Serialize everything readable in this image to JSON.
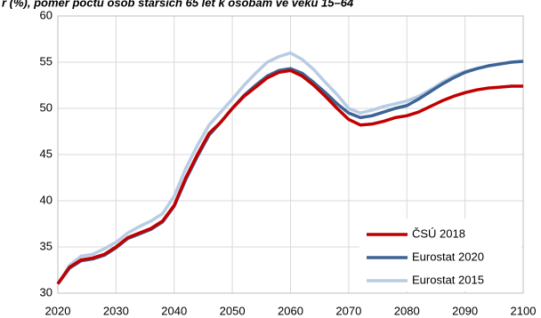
{
  "chart_data": {
    "type": "line",
    "title": "r (%), poměr počtu osob starších 65 let k osobám ve věku 15–64",
    "x": [
      2020,
      2022,
      2024,
      2026,
      2028,
      2030,
      2032,
      2034,
      2036,
      2038,
      2040,
      2042,
      2044,
      2046,
      2048,
      2050,
      2052,
      2054,
      2056,
      2058,
      2060,
      2062,
      2064,
      2066,
      2068,
      2070,
      2072,
      2074,
      2076,
      2078,
      2080,
      2082,
      2084,
      2086,
      2088,
      2090,
      2092,
      2094,
      2096,
      2098,
      2100
    ],
    "series": [
      {
        "name": "ČSÚ 2018",
        "color": "#c00000",
        "values": [
          31,
          32.8,
          33.6,
          33.8,
          34.2,
          35,
          36,
          36.5,
          37,
          37.8,
          39.5,
          42.5,
          45,
          47.3,
          48.5,
          50,
          51.3,
          52.3,
          53.3,
          53.9,
          54.1,
          53.5,
          52.5,
          51.3,
          50,
          48.8,
          48.2,
          48.3,
          48.6,
          49,
          49.2,
          49.6,
          50.2,
          50.8,
          51.3,
          51.7,
          52,
          52.2,
          52.3,
          52.4,
          52.4
        ]
      },
      {
        "name": "Eurostat 2020",
        "color": "#3c6494",
        "values": [
          31,
          32.7,
          33.5,
          33.7,
          34.1,
          34.9,
          35.9,
          36.4,
          36.9,
          37.7,
          39.4,
          42.3,
          44.8,
          47.1,
          48.5,
          50,
          51.4,
          52.5,
          53.5,
          54.1,
          54.3,
          53.8,
          52.8,
          51.7,
          50.5,
          49.5,
          49,
          49.2,
          49.6,
          50,
          50.3,
          51,
          51.8,
          52.6,
          53.3,
          53.9,
          54.3,
          54.6,
          54.8,
          55,
          55.1
        ]
      },
      {
        "name": "Eurostat 2015",
        "color": "#b8cce4",
        "values": [
          31,
          33,
          34,
          34.2,
          34.8,
          35.5,
          36.5,
          37.2,
          37.8,
          38.6,
          40.5,
          43.5,
          46,
          48.2,
          49.6,
          51,
          52.5,
          53.8,
          55,
          55.6,
          56,
          55.3,
          54.2,
          52.8,
          51.5,
          50,
          49.5,
          49.8,
          50.2,
          50.5,
          50.8,
          51.3,
          52,
          52.8,
          53.5,
          54,
          54.3,
          54.6,
          54.8,
          55,
          55.1
        ]
      }
    ],
    "xlim": [
      2020,
      2100
    ],
    "xticks": [
      2020,
      2030,
      2040,
      2050,
      2060,
      2070,
      2080,
      2090,
      2100
    ],
    "ylim": [
      30,
      60
    ],
    "yticks": [
      30,
      35,
      40,
      45,
      50,
      55,
      60
    ],
    "grid": true
  }
}
